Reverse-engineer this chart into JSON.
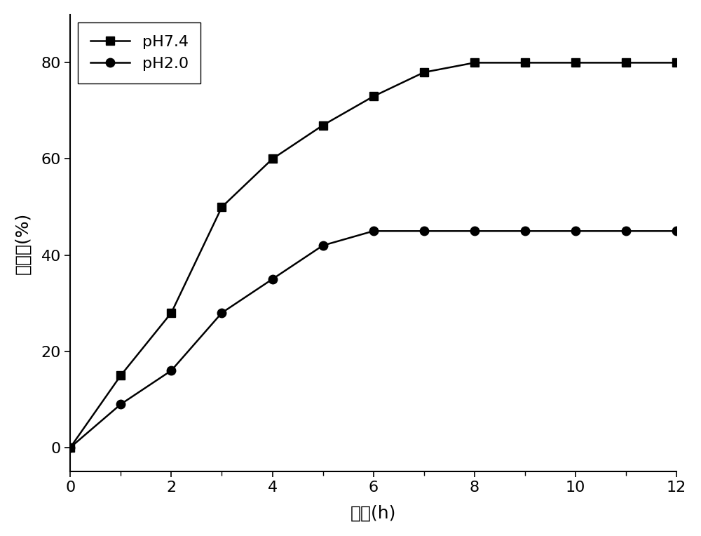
{
  "ph74_x": [
    0,
    1,
    2,
    3,
    4,
    5,
    6,
    7,
    8,
    9,
    10,
    11,
    12
  ],
  "ph74_y": [
    0,
    15,
    28,
    50,
    60,
    67,
    73,
    78,
    80,
    80,
    80,
    80,
    80
  ],
  "ph20_x": [
    0,
    1,
    2,
    3,
    4,
    5,
    6,
    7,
    8,
    9,
    10,
    11,
    12
  ],
  "ph20_y": [
    0,
    9,
    16,
    28,
    35,
    42,
    45,
    45,
    45,
    45,
    45,
    45,
    45
  ],
  "xlabel": "时间(h)",
  "ylabel": "缓释率(%)",
  "legend_ph74": "pH7.4",
  "legend_ph20": "pH2.0",
  "xlim": [
    0,
    12
  ],
  "ylim": [
    -5,
    90
  ],
  "xticks_major": [
    0,
    2,
    4,
    6,
    8,
    10,
    12
  ],
  "xticks_minor": [
    1,
    3,
    5,
    7,
    9,
    11
  ],
  "yticks": [
    0,
    20,
    40,
    60,
    80
  ],
  "line_color": "#000000",
  "marker_square": "s",
  "marker_circle": "o",
  "markersize": 9,
  "linewidth": 1.8,
  "background_color": "#ffffff",
  "tick_fontsize": 16,
  "label_fontsize": 18,
  "legend_fontsize": 16
}
